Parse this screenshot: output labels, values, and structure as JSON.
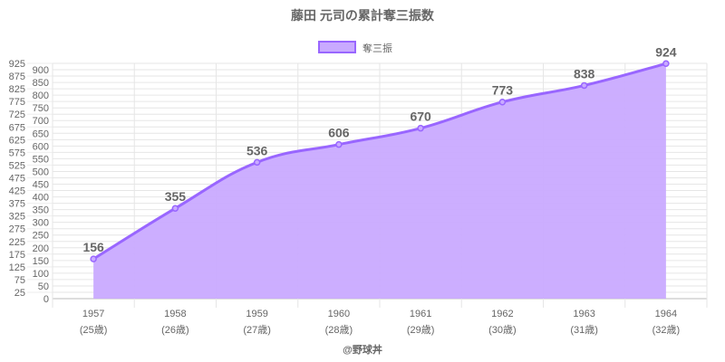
{
  "chart_data": {
    "type": "area",
    "title": "藤田 元司の累計奪三振数",
    "categories": [
      "1957",
      "1958",
      "1959",
      "1960",
      "1961",
      "1962",
      "1963",
      "1964"
    ],
    "sublabels": [
      "(25歳)",
      "(26歳)",
      "(27歳)",
      "(28歳)",
      "(29歳)",
      "(30歳)",
      "(31歳)",
      "(32歳)"
    ],
    "series": [
      {
        "name": "奪三振",
        "values": [
          156,
          355,
          536,
          606,
          670,
          773,
          838,
          924
        ]
      }
    ],
    "ylim": [
      0,
      925
    ],
    "ytick_step": 25,
    "grid": true,
    "legend": "top",
    "colors": {
      "line": "#9966ff",
      "fill": "#c9aaff",
      "text": "#666666"
    },
    "credit": "@野球丼"
  }
}
